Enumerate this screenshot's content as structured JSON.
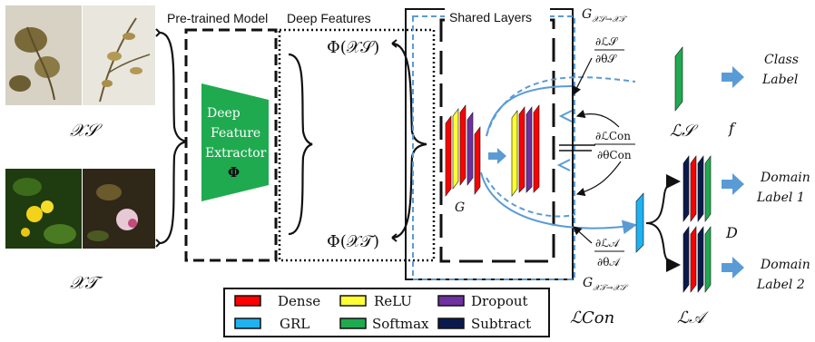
{
  "domains": {
    "source_label": "𝒳𝒮",
    "target_label": "𝒳𝒯"
  },
  "pretrained": {
    "title": "Pre-trained Model",
    "extractor_lines": [
      "Deep",
      "Feature",
      "Extractor",
      "Φ"
    ]
  },
  "deep_features": {
    "title": "Deep Features",
    "source": "Φ(𝒳𝒮)",
    "target": "Φ(𝒳𝒯)"
  },
  "shared": {
    "title": "Shared Layers",
    "g_label": "G",
    "g_s2t": "G",
    "g_s2t_sub": "𝒳𝒮→𝒳𝒯",
    "g_t2s": "G",
    "g_t2s_sub": "𝒳𝒯→𝒳𝒮"
  },
  "gradients": {
    "ls_num": "∂ℒ𝒮",
    "ls_den": "∂θ𝒮",
    "lcon_num": "∂ℒCon",
    "lcon_den": "∂θCon",
    "la_num": "∂ℒ𝒜",
    "la_den": "∂θ𝒜"
  },
  "losses": {
    "ls": "ℒ𝒮",
    "la": "ℒ𝒜",
    "lcon": "ℒCon",
    "f_label": "f",
    "d_label": "D"
  },
  "outputs": {
    "class_label": [
      "Class",
      "Label"
    ],
    "domain_label_1": [
      "Domain",
      "Label 1"
    ],
    "domain_label_2": [
      "Domain",
      "Label 2"
    ]
  },
  "legend": [
    {
      "label": "Dense",
      "color": "#ff0000"
    },
    {
      "label": "ReLU",
      "color": "#ffff33"
    },
    {
      "label": "Dropout",
      "color": "#7030a0"
    },
    {
      "label": "GRL",
      "color": "#1fb2f0"
    },
    {
      "label": "Softmax",
      "color": "#1faa50"
    },
    {
      "label": "Subtract",
      "color": "#0b1a4d"
    }
  ],
  "colors": {
    "dense": "#ff0000",
    "relu": "#ffff33",
    "dropout": "#7030a0",
    "grl": "#1fb2f0",
    "softmax": "#1faa50",
    "subtract": "#0b1a4d",
    "arrow_blue": "#5b9bd5",
    "extractor_green": "#1faa50"
  }
}
